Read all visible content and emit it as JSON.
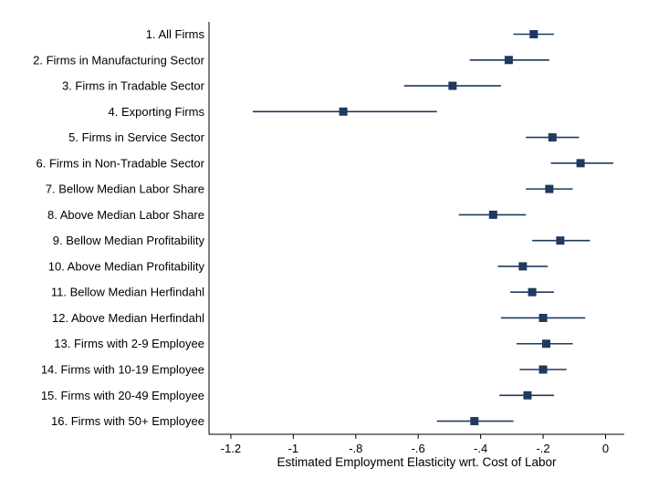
{
  "chart_data": {
    "type": "scatter",
    "subtype": "coefficient-plot",
    "title": "",
    "xlabel": "Estimated Employment Elasticity wrt. Cost of Labor",
    "ylabel": "",
    "xlim": [
      -1.27,
      0.06
    ],
    "xticks": [
      -1.2,
      -1,
      -0.8,
      -0.6,
      -0.4,
      -0.2,
      0
    ],
    "xtick_labels": [
      "-1.2",
      "-1",
      "-.8",
      "-.6",
      "-.4",
      "-.2",
      "0"
    ],
    "grid": false,
    "legend": "none",
    "marker_color": "#1f3a5f",
    "categories": [
      "1. All Firms",
      "2. Firms in Manufacturing Sector",
      "3. Firms in Tradable Sector",
      "4. Exporting Firms",
      "5. Firms in Service Sector",
      "6. Firms in Non-Tradable Sector",
      "7. Bellow Median Labor Share",
      "8. Above Median Labor Share",
      "9. Bellow Median Profitability",
      "10. Above Median Profitability",
      "11. Bellow Median Herfindahl",
      "12. Above Median Herfindahl",
      "13. Firms with 2-9 Employee",
      "14. Firms with 10-19 Employee",
      "15. Firms with 20-49 Employee",
      "16. Firms with 50+ Employee"
    ],
    "estimates": [
      -0.23,
      -0.31,
      -0.49,
      -0.84,
      -0.17,
      -0.08,
      -0.18,
      -0.36,
      -0.145,
      -0.265,
      -0.235,
      -0.2,
      -0.19,
      -0.2,
      -0.25,
      -0.42
    ],
    "ci_low": [
      -0.295,
      -0.435,
      -0.645,
      -1.13,
      -0.255,
      -0.175,
      -0.255,
      -0.47,
      -0.235,
      -0.345,
      -0.305,
      -0.335,
      -0.285,
      -0.275,
      -0.34,
      -0.54
    ],
    "ci_high": [
      -0.165,
      -0.18,
      -0.335,
      -0.54,
      -0.085,
      0.025,
      -0.105,
      -0.255,
      -0.05,
      -0.185,
      -0.165,
      -0.065,
      -0.105,
      -0.125,
      -0.165,
      -0.295
    ]
  }
}
